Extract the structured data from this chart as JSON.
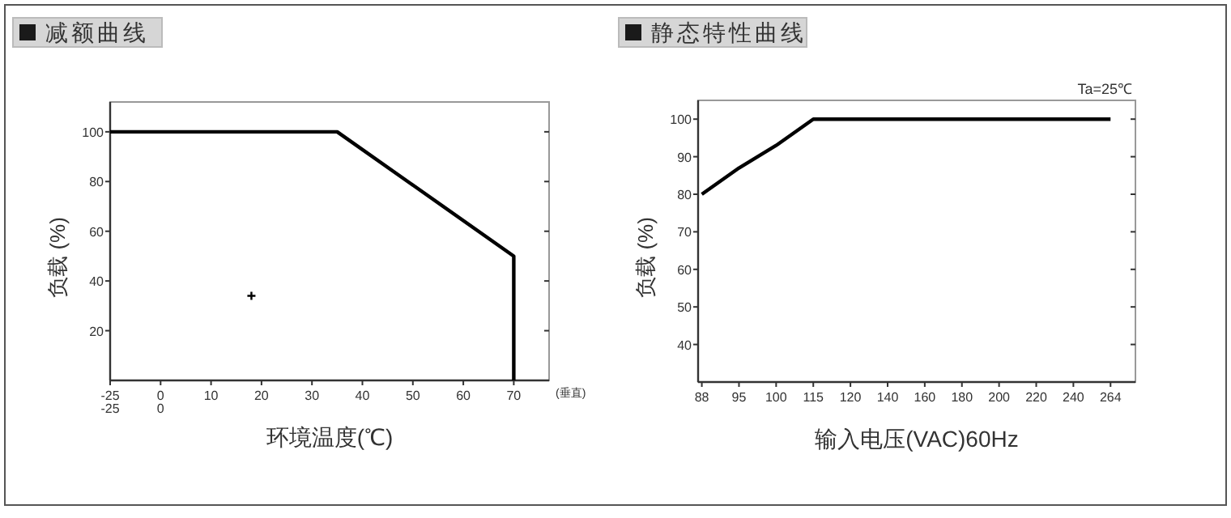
{
  "chart_data": [
    {
      "type": "line",
      "title": "减额曲线",
      "xlabel": "环境温度(℃)",
      "ylabel": "负载 (%)",
      "series": [
        {
          "type": "line",
          "x": [
            -10,
            35,
            70,
            70
          ],
          "values": [
            100,
            100,
            50,
            0
          ],
          "color": "#000000"
        },
        {
          "type": "scatter",
          "x": [
            18
          ],
          "values": [
            34
          ],
          "color": "#000000",
          "marker": "cross"
        }
      ],
      "xlim": [
        -10,
        77
      ],
      "xticks": [
        {
          "value": -10,
          "label": "-25\n-25"
        },
        {
          "value": 0,
          "label": "0\n0"
        },
        10,
        20,
        30,
        40,
        50,
        60,
        70
      ],
      "ylim": [
        0,
        112
      ],
      "yticks": [
        20,
        40,
        60,
        80,
        100
      ],
      "annotations": [
        "(垂直)"
      ]
    },
    {
      "type": "line",
      "title": "静态特性曲线",
      "xlabel": "输入电压(VAC)60Hz",
      "ylabel": "负载 (%)",
      "categories": [
        "88",
        "95",
        "100",
        "115",
        "120",
        "140",
        "160",
        "180",
        "200",
        "220",
        "240",
        "264"
      ],
      "series": [
        {
          "values": [
            80,
            87,
            93,
            100,
            100,
            100,
            100,
            100,
            100,
            100,
            100,
            100
          ],
          "color": "#000000"
        }
      ],
      "ylim": [
        30,
        105
      ],
      "yticks": [
        40,
        50,
        60,
        70,
        80,
        90,
        100
      ],
      "annotations": [
        "Ta=25℃"
      ]
    }
  ]
}
